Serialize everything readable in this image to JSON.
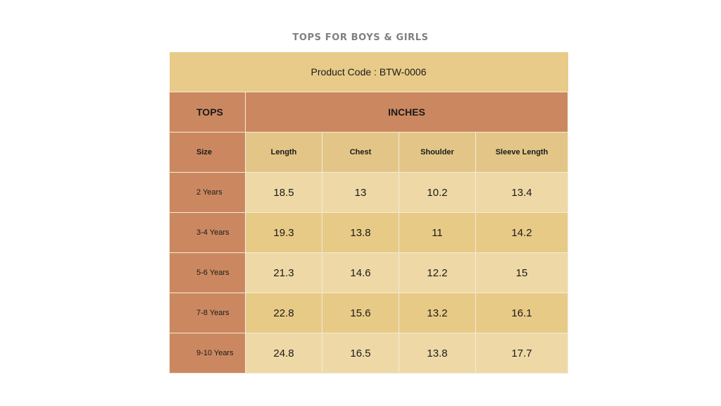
{
  "title": "TOPS FOR BOYS & GIRLS",
  "product_code": "Product Code : BTW-0006",
  "header": {
    "left": "TOPS",
    "right": "INCHES"
  },
  "columns": {
    "size": "Size",
    "length": "Length",
    "chest": "Chest",
    "shoulder": "Shoulder",
    "sleeve": "Sleeve Length"
  },
  "rows": [
    {
      "size": "2 Years",
      "length": "18.5",
      "chest": "13",
      "shoulder": "10.2",
      "sleeve": "13.4"
    },
    {
      "size": "3-4 Years",
      "length": "19.3",
      "chest": "13.8",
      "shoulder": "11",
      "sleeve": "14.2"
    },
    {
      "size": "5-6 Years",
      "length": "21.3",
      "chest": "14.6",
      "shoulder": "12.2",
      "sleeve": "15"
    },
    {
      "size": "7-8 Years",
      "length": "22.8",
      "chest": "15.6",
      "shoulder": "13.2",
      "sleeve": "16.1"
    },
    {
      "size": "9-10 Years",
      "length": "24.8",
      "chest": "16.5",
      "shoulder": "13.8",
      "sleeve": "17.7"
    }
  ],
  "colors": {
    "title": "#7f7f7f",
    "code_band": "#e8cb88",
    "terracotta": "#cb8860",
    "column_header": "#e3c687",
    "row_light": "#eed9a6",
    "row_dark": "#e8ca87"
  }
}
